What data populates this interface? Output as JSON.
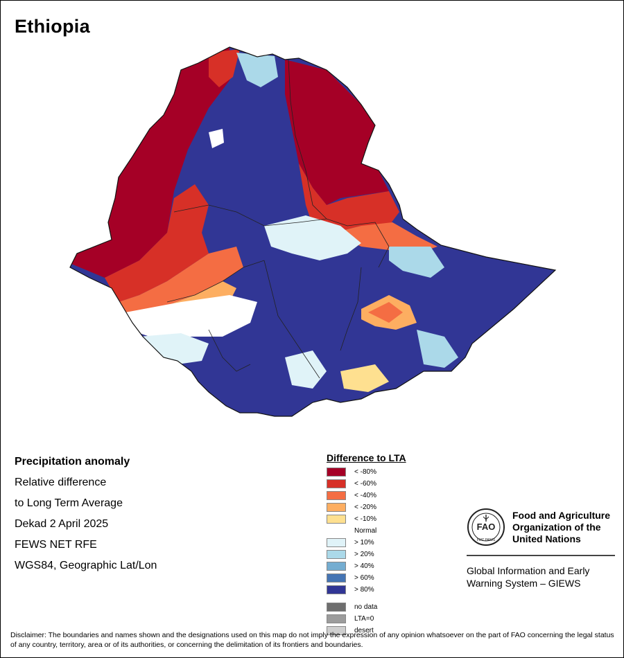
{
  "map": {
    "title": "Ethiopia"
  },
  "info": {
    "heading": "Precipitation anomaly",
    "line1": "Relative difference",
    "line2": "to Long Term Average",
    "period": "Dekad 2 April 2025",
    "source": "FEWS NET RFE",
    "projection": "WGS84, Geographic Lat/Lon"
  },
  "legend": {
    "title": "Difference to LTA",
    "items": [
      {
        "label": "< -80%",
        "color": "#a50026"
      },
      {
        "label": "< -60%",
        "color": "#d73027"
      },
      {
        "label": "< -40%",
        "color": "#f46d43"
      },
      {
        "label": "< -20%",
        "color": "#fdae61"
      },
      {
        "label": "< -10%",
        "color": "#fee090"
      },
      {
        "label": "Normal",
        "color": "#ffffff"
      },
      {
        "label": "> 10%",
        "color": "#e0f3f8"
      },
      {
        "label": "> 20%",
        "color": "#abd9e9"
      },
      {
        "label": "> 40%",
        "color": "#74add1"
      },
      {
        "label": "> 60%",
        "color": "#4575b4"
      },
      {
        "label": "> 80%",
        "color": "#313695"
      }
    ],
    "extra": [
      {
        "label": "no data",
        "color": "#6e6e6e"
      },
      {
        "label": "LTA=0",
        "color": "#9c9c9c"
      },
      {
        "label": "desert",
        "color": "#cfcfcf"
      }
    ]
  },
  "branding": {
    "org_name": "Food and Agriculture\nOrganization of the\nUnited Nations",
    "logo_text": "FAO",
    "logo_motto": "FIAT PANIS",
    "program": "Global Information and Early\nWarning System – GIEWS"
  },
  "disclaimer": "Disclaimer: The boundaries and names shown and the designations used on this map do not imply the expression of any opinion whatsoever on the part of FAO concerning the legal status of any country, territory, area or of its authorities, or concerning the delimitation of its frontiers and boundaries."
}
